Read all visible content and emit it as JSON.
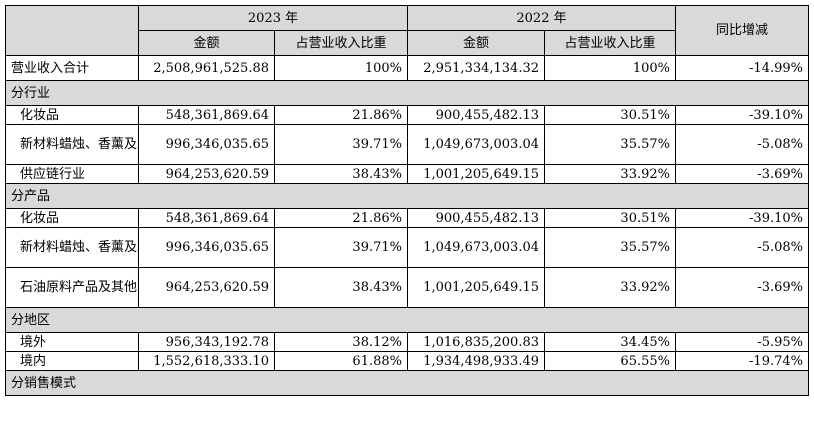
{
  "header": {
    "year_2023": "2023 年",
    "year_2022": "2022 年",
    "yoy": "同比增减",
    "amount": "金额",
    "share": "占营业收入比重"
  },
  "total": {
    "label": "营业收入合计",
    "amount_2023": "2,508,961,525.88",
    "share_2023": "100%",
    "amount_2022": "2,951,334,134.32",
    "share_2022": "100%",
    "yoy": "-14.99%"
  },
  "sections": [
    {
      "title": "分行业",
      "rows": [
        {
          "label": "化妆品",
          "amount_2023": "548,361,869.64",
          "share_2023": "21.86%",
          "amount_2022": "900,455,482.13",
          "share_2022": "30.51%",
          "yoy": "-39.10%"
        },
        {
          "label": "新材料蜡烛、香薰及工艺品等",
          "amount_2023": "996,346,035.65",
          "share_2023": "39.71%",
          "amount_2022": "1,049,673,003.04",
          "share_2022": "35.57%",
          "yoy": "-5.08%"
        },
        {
          "label": "供应链行业",
          "amount_2023": "964,253,620.59",
          "share_2023": "38.43%",
          "amount_2022": "1,001,205,649.15",
          "share_2022": "33.92%",
          "yoy": "-3.69%"
        }
      ]
    },
    {
      "title": "分产品",
      "rows": [
        {
          "label": "化妆品",
          "amount_2023": "548,361,869.64",
          "share_2023": "21.86%",
          "amount_2022": "900,455,482.13",
          "share_2022": "30.51%",
          "yoy": "-39.10%"
        },
        {
          "label": "新材料蜡烛、香薰及工艺品等",
          "amount_2023": "996,346,035.65",
          "share_2023": "39.71%",
          "amount_2022": "1,049,673,003.04",
          "share_2022": "35.57%",
          "yoy": "-5.08%"
        },
        {
          "label": "石油原料产品及其他",
          "amount_2023": "964,253,620.59",
          "share_2023": "38.43%",
          "amount_2022": "1,001,205,649.15",
          "share_2022": "33.92%",
          "yoy": "-3.69%"
        }
      ]
    },
    {
      "title": "分地区",
      "rows": [
        {
          "label": "境外",
          "amount_2023": "956,343,192.78",
          "share_2023": "38.12%",
          "amount_2022": "1,016,835,200.83",
          "share_2022": "34.45%",
          "yoy": "-5.95%"
        },
        {
          "label": "境内",
          "amount_2023": "1,552,618,333.10",
          "share_2023": "61.88%",
          "amount_2022": "1,934,498,933.49",
          "share_2022": "65.55%",
          "yoy": "-19.74%"
        }
      ]
    },
    {
      "title": "分销售模式",
      "rows": []
    }
  ]
}
